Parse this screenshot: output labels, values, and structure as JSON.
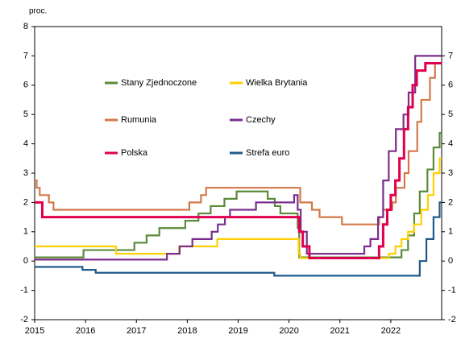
{
  "chart_data": {
    "type": "line",
    "step": true,
    "y_label": "proc.",
    "xlim": [
      2015,
      2023
    ],
    "xticks": [
      2015,
      2016,
      2017,
      2018,
      2019,
      2020,
      2021,
      2022
    ],
    "ylim": [
      -2,
      8
    ],
    "yticks": [
      -2,
      -1,
      0,
      1,
      2,
      3,
      4,
      5,
      6,
      7,
      8
    ],
    "y2lim": [
      -2,
      8
    ],
    "y2ticks": [
      -2,
      -1,
      0,
      1,
      2,
      3,
      4,
      5,
      6,
      7
    ],
    "series": [
      {
        "name": "Stany Zjednoczone",
        "color": "#5b8a3a",
        "x": [
          2015,
          2015.96,
          2016.96,
          2017.2,
          2017.45,
          2017.96,
          2018.22,
          2018.46,
          2018.73,
          2018.97,
          2019.58,
          2019.72,
          2019.83,
          2020.17,
          2020.2,
          2022.21,
          2022.34,
          2022.46,
          2022.57,
          2022.72,
          2022.84,
          2022.96
        ],
        "values": [
          0.125,
          0.375,
          0.625,
          0.875,
          1.125,
          1.375,
          1.625,
          1.875,
          2.125,
          2.375,
          2.125,
          1.875,
          1.625,
          1.125,
          0.125,
          0.375,
          0.875,
          1.625,
          2.375,
          3.125,
          3.875,
          4.375
        ]
      },
      {
        "name": "Wielka Brytania",
        "color": "#ffd000",
        "x": [
          2015,
          2016.6,
          2017.84,
          2018.59,
          2020.19,
          2020.22,
          2021.96,
          2022.09,
          2022.21,
          2022.34,
          2022.46,
          2022.6,
          2022.73,
          2022.84,
          2022.96
        ],
        "values": [
          0.5,
          0.25,
          0.5,
          0.75,
          0.25,
          0.1,
          0.25,
          0.5,
          0.75,
          1.0,
          1.25,
          1.75,
          2.25,
          3.0,
          3.5
        ]
      },
      {
        "name": "Rumunia",
        "color": "#d4784a",
        "x": [
          2015,
          2015.04,
          2015.1,
          2015.28,
          2015.37,
          2018.04,
          2018.27,
          2018.37,
          2020.22,
          2020.45,
          2020.6,
          2021.04,
          2021.77,
          2021.85,
          2022.03,
          2022.1,
          2022.27,
          2022.35,
          2022.52,
          2022.6,
          2022.77,
          2022.87
        ],
        "values": [
          2.75,
          2.5,
          2.25,
          2.0,
          1.75,
          2.0,
          2.25,
          2.5,
          2.0,
          1.75,
          1.5,
          1.25,
          1.5,
          1.75,
          2.0,
          2.5,
          3.0,
          3.75,
          4.75,
          5.5,
          6.25,
          6.75
        ]
      },
      {
        "name": "Czechy",
        "color": "#7b2d8e",
        "x": [
          2015,
          2017.6,
          2017.85,
          2018.1,
          2018.48,
          2018.6,
          2018.74,
          2018.84,
          2019.35,
          2020.1,
          2020.17,
          2020.23,
          2020.35,
          2021.48,
          2021.6,
          2021.75,
          2021.85,
          2021.96,
          2022.1,
          2022.25,
          2022.35,
          2022.48
        ],
        "values": [
          0.05,
          0.25,
          0.5,
          0.75,
          1.0,
          1.25,
          1.5,
          1.75,
          2.0,
          2.25,
          1.75,
          1.0,
          0.25,
          0.5,
          0.75,
          1.5,
          2.75,
          3.75,
          4.5,
          5.0,
          5.75,
          7.0
        ]
      },
      {
        "name": "Polska",
        "color": "#e0004d",
        "x": [
          2015,
          2015.15,
          2020.2,
          2020.27,
          2020.4,
          2021.77,
          2021.85,
          2021.93,
          2022.0,
          2022.09,
          2022.17,
          2022.26,
          2022.34,
          2022.43,
          2022.51,
          2022.68
        ],
        "values": [
          2.0,
          1.5,
          1.0,
          0.5,
          0.1,
          0.5,
          1.25,
          1.75,
          2.25,
          2.75,
          3.5,
          4.5,
          5.25,
          6.0,
          6.5,
          6.75
        ]
      },
      {
        "name": "Strefa euro",
        "color": "#1f5a8c",
        "x": [
          2015,
          2015.94,
          2016.2,
          2019.71,
          2022.57,
          2022.7,
          2022.84,
          2022.96
        ],
        "values": [
          -0.2,
          -0.3,
          -0.4,
          -0.5,
          0.0,
          0.75,
          1.5,
          2.0
        ]
      }
    ]
  }
}
